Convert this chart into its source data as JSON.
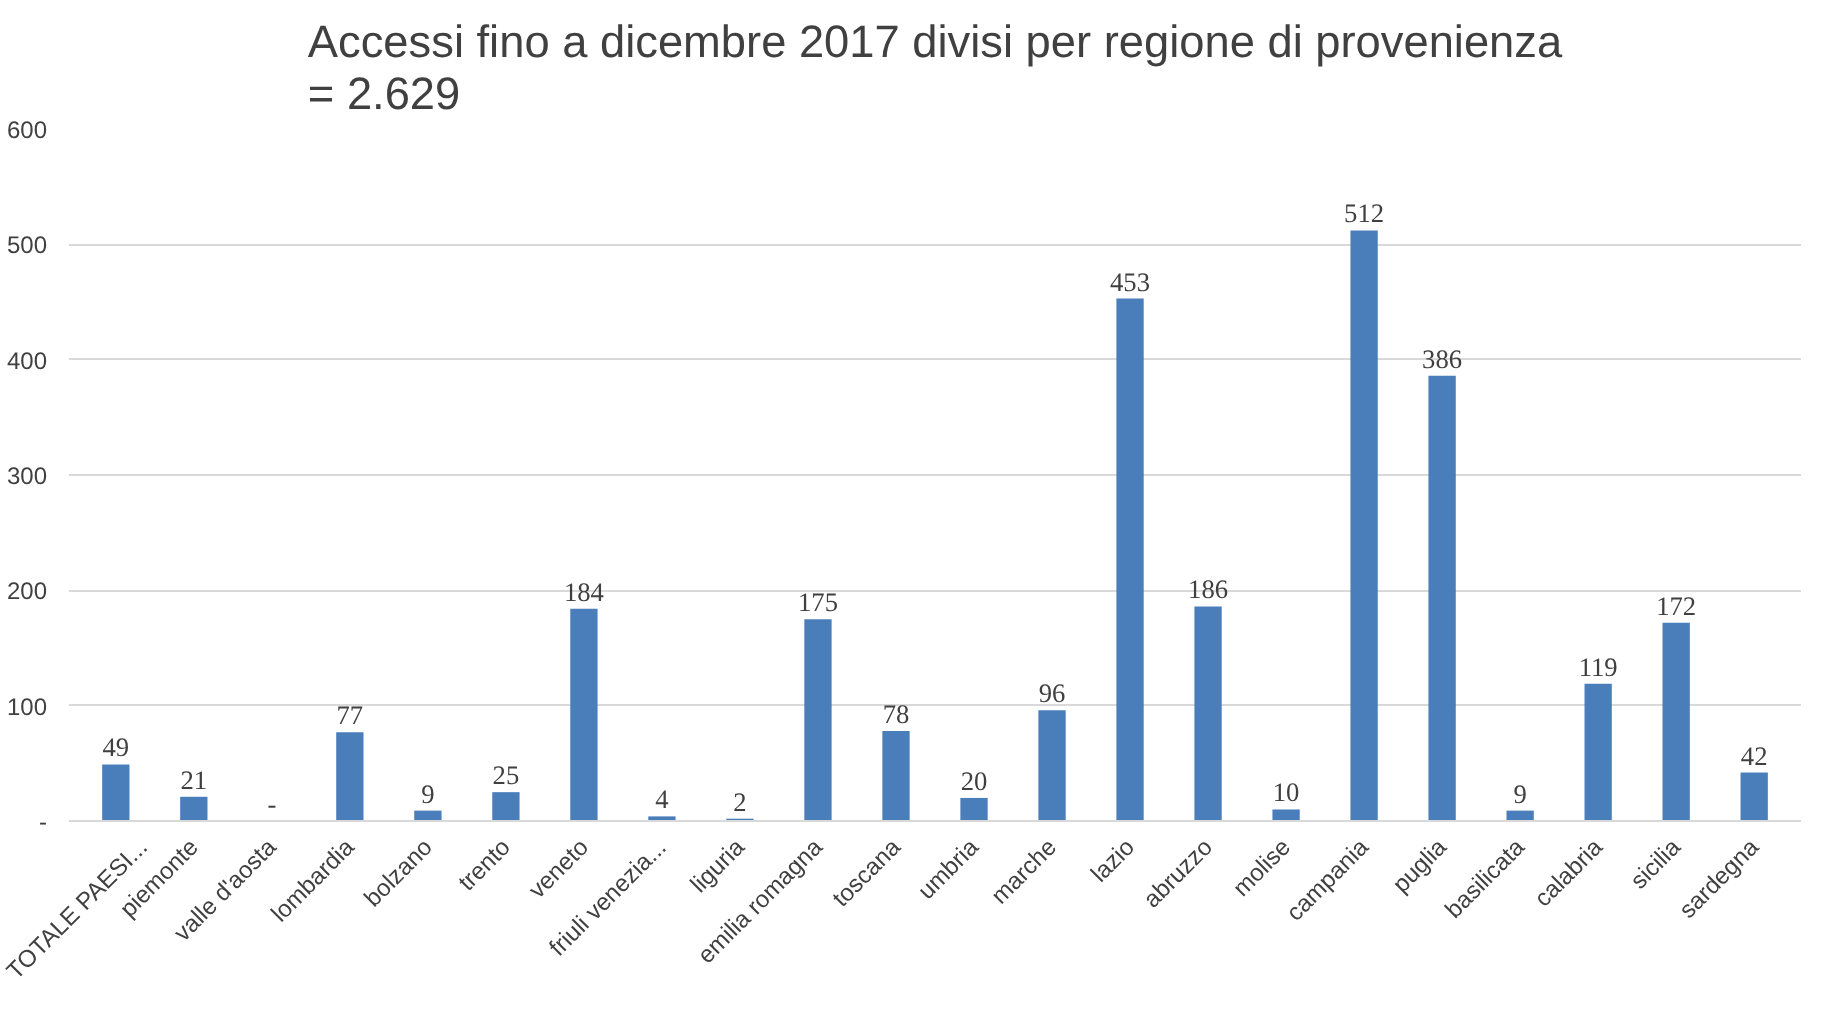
{
  "chart_data": {
    "type": "bar",
    "title": "Accessi fino a dicembre 2017 divisi per regione di provenienza = 2.629",
    "categories": [
      "TOTALE PAESI...",
      "piemonte",
      "valle d'aosta",
      "lombardia",
      "bolzano",
      "trento",
      "veneto",
      "friuli venezia...",
      "liguria",
      "emilia romagna",
      "toscana",
      "umbria",
      "marche",
      "lazio",
      "abruzzo",
      "molise",
      "campania",
      "puglia",
      "basilicata",
      "calabria",
      "sicilia",
      "sardegna"
    ],
    "values": [
      49,
      21,
      0,
      77,
      9,
      25,
      184,
      4,
      2,
      175,
      78,
      20,
      96,
      453,
      186,
      10,
      512,
      386,
      9,
      119,
      172,
      42
    ],
    "value_labels": [
      "49",
      "21",
      "-",
      "77",
      "9",
      "25",
      "184",
      "4",
      "2",
      "175",
      "78",
      "20",
      "96",
      "453",
      "186",
      "10",
      "512",
      "386",
      "9",
      "119",
      "172",
      "42"
    ],
    "color": "#4a7ebb",
    "ylim": [
      0,
      600
    ],
    "yticks": [
      {
        "value": 0,
        "label": "-"
      },
      100,
      200,
      300,
      400,
      500,
      600
    ],
    "grid": "y"
  }
}
